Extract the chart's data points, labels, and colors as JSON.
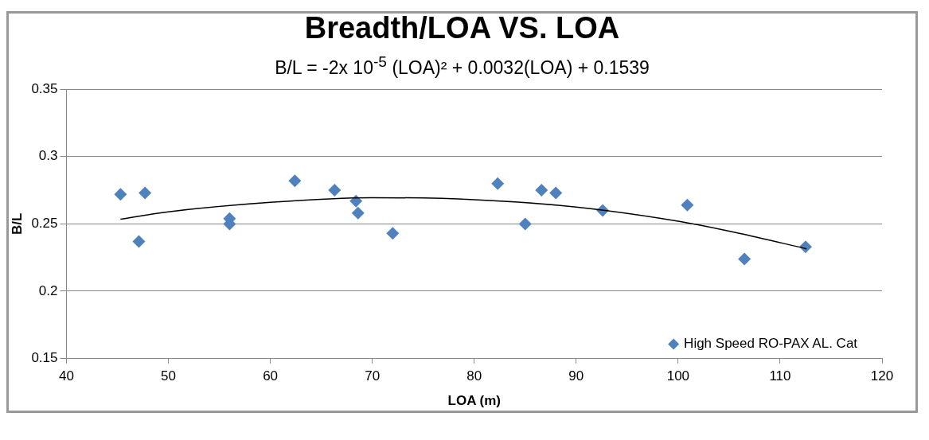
{
  "chart_data": {
    "type": "scatter",
    "title": "Breadth/LOA VS. LOA",
    "subtitle": "B/L = -2x 10$^{-5}$ (LOA)² + 0.0032(LOA) + 0.1539",
    "xlabel": "LOA (m)",
    "ylabel": "B/L",
    "xlim": [
      40,
      120
    ],
    "xticks": [
      40,
      50,
      60,
      70,
      80,
      90,
      100,
      110,
      120
    ],
    "ylim": [
      0.15,
      0.35
    ],
    "yticks": [
      0.15,
      0.2,
      0.25,
      0.3,
      0.35
    ],
    "grid": "y",
    "legend": "bottom right",
    "marker": "diamond",
    "series": [
      {
        "name": "High Speed RO-PAX AL. Cat",
        "color": "#4f81bd",
        "x": [
          45.3,
          47.1,
          47.7,
          56.0,
          56.0,
          62.4,
          66.3,
          68.4,
          68.6,
          72.0,
          82.3,
          85.0,
          86.6,
          88.0,
          92.6,
          100.9,
          106.5,
          112.5
        ],
        "values": [
          0.272,
          0.237,
          0.273,
          0.254,
          0.25,
          0.282,
          0.275,
          0.267,
          0.258,
          0.243,
          0.28,
          0.25,
          0.275,
          0.273,
          0.26,
          0.264,
          0.224,
          0.233
        ]
      },
      {
        "type": "line",
        "color": "#000000",
        "marker": "none",
        "x": [
          45.3,
          50,
          60,
          70,
          80,
          90,
          100,
          106,
          112.6
        ],
        "values": [
          0.2535,
          0.259,
          0.266,
          0.2695,
          0.268,
          0.2625,
          0.252,
          0.243,
          0.2315
        ]
      }
    ]
  }
}
